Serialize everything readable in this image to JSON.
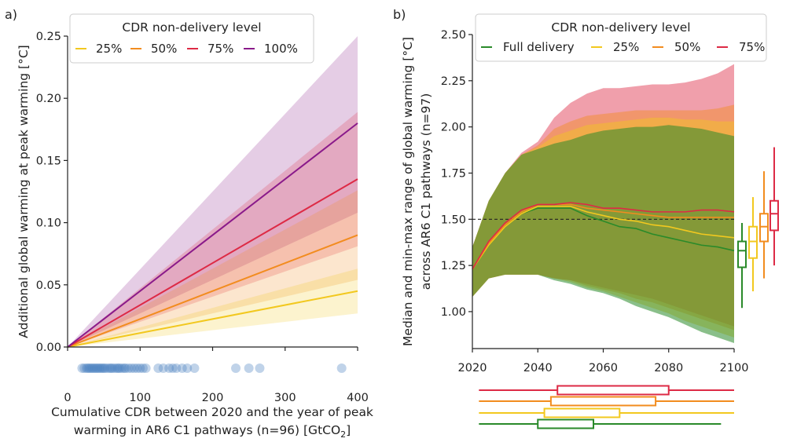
{
  "colors": {
    "full": "#2a8a2a",
    "p25": "#f2c81f",
    "p50": "#f28c1f",
    "p75": "#dd2a45",
    "p100": "#8a1a8a",
    "dots": "#4a80c0"
  },
  "chart_data": [
    {
      "type": "line",
      "panel_label": "a)",
      "xlabel_line1": "Cumulative CDR between 2020 and the year of peak",
      "xlabel_line2_prefix": "warming in AR6 C1 pathways (n=96) [GtCO",
      "xlabel_line2_sub": "2",
      "xlabel_line2_suffix": "]",
      "ylabel": "Additional global warming at peak warming [°C]",
      "xlim": [
        0,
        400
      ],
      "ylim": [
        0,
        0.25
      ],
      "xticks": [
        0,
        100,
        200,
        300,
        400
      ],
      "yticks": [
        0.0,
        0.05,
        0.1,
        0.15,
        0.2,
        0.25
      ],
      "ytick_labels": [
        "0.00",
        "0.05",
        "0.10",
        "0.15",
        "0.20",
        "0.25"
      ],
      "legend_title": "CDR non-delivery level",
      "series": [
        {
          "name": "25%",
          "key": "p25",
          "x": [
            0,
            400
          ],
          "median": [
            0,
            0.045
          ],
          "low": [
            0,
            0.027
          ],
          "high": [
            0,
            0.063
          ]
        },
        {
          "name": "50%",
          "key": "p50",
          "x": [
            0,
            400
          ],
          "median": [
            0,
            0.09
          ],
          "low": [
            0,
            0.054
          ],
          "high": [
            0,
            0.126
          ]
        },
        {
          "name": "75%",
          "key": "p75",
          "x": [
            0,
            400
          ],
          "median": [
            0,
            0.135
          ],
          "low": [
            0,
            0.081
          ],
          "high": [
            0,
            0.189
          ]
        },
        {
          "name": "100%",
          "key": "p100",
          "x": [
            0,
            400
          ],
          "median": [
            0,
            0.18
          ],
          "low": [
            0,
            0.108
          ],
          "high": [
            0,
            0.25
          ]
        }
      ],
      "strip_values": [
        20,
        23,
        26,
        28,
        30,
        32,
        34,
        36,
        38,
        40,
        42,
        44,
        46,
        48,
        50,
        52,
        55,
        58,
        60,
        62,
        65,
        68,
        70,
        72,
        75,
        78,
        80,
        84,
        88,
        92,
        96,
        100,
        104,
        108,
        125,
        132,
        140,
        145,
        150,
        158,
        165,
        175,
        232,
        250,
        265,
        378
      ]
    },
    {
      "type": "area",
      "panel_label": "b)",
      "ylabel_line1": "Median and min-max range of global warming [°C]",
      "ylabel_line2": "across AR6 C1 pathways (n=97)",
      "xlim": [
        2020,
        2100
      ],
      "ylim": [
        0.8,
        2.5
      ],
      "xticks": [
        2020,
        2040,
        2060,
        2080,
        2100
      ],
      "yticks": [
        1.0,
        1.25,
        1.5,
        1.75,
        2.0,
        2.25,
        2.5
      ],
      "ytick_labels": [
        "1.00",
        "1.25",
        "1.50",
        "1.75",
        "2.00",
        "2.25",
        "2.50"
      ],
      "reference_line": 1.5,
      "legend_title": "CDR non-delivery level",
      "years": [
        2020,
        2025,
        2030,
        2035,
        2040,
        2045,
        2050,
        2055,
        2060,
        2065,
        2070,
        2075,
        2080,
        2085,
        2090,
        2095,
        2100
      ],
      "series": [
        {
          "name": "Full delivery",
          "key": "full",
          "median": [
            1.23,
            1.36,
            1.46,
            1.53,
            1.56,
            1.56,
            1.56,
            1.52,
            1.49,
            1.46,
            1.45,
            1.42,
            1.4,
            1.38,
            1.36,
            1.35,
            1.33
          ],
          "min": [
            1.08,
            1.18,
            1.2,
            1.2,
            1.2,
            1.17,
            1.15,
            1.12,
            1.1,
            1.07,
            1.03,
            1.0,
            0.97,
            0.93,
            0.89,
            0.86,
            0.83
          ],
          "max": [
            1.35,
            1.6,
            1.75,
            1.85,
            1.88,
            1.91,
            1.93,
            1.96,
            1.98,
            1.99,
            2.0,
            2.0,
            2.01,
            2.0,
            1.99,
            1.97,
            1.95
          ],
          "box": {
            "whisker_low": 1.02,
            "q1": 1.24,
            "median": 1.33,
            "q3": 1.38,
            "whisker_high": 1.48
          }
        },
        {
          "name": "25%",
          "key": "p25",
          "median": [
            1.23,
            1.36,
            1.46,
            1.53,
            1.57,
            1.57,
            1.57,
            1.54,
            1.52,
            1.5,
            1.49,
            1.47,
            1.46,
            1.44,
            1.42,
            1.41,
            1.4
          ],
          "min": [
            1.08,
            1.18,
            1.2,
            1.2,
            1.2,
            1.18,
            1.16,
            1.13,
            1.11,
            1.08,
            1.05,
            1.02,
            0.99,
            0.95,
            0.92,
            0.89,
            0.86
          ],
          "max": [
            1.35,
            1.6,
            1.75,
            1.85,
            1.89,
            1.95,
            1.98,
            2.01,
            2.02,
            2.03,
            2.04,
            2.05,
            2.05,
            2.04,
            2.04,
            2.03,
            2.03
          ],
          "box": {
            "whisker_low": 1.11,
            "q1": 1.29,
            "median": 1.38,
            "q3": 1.46,
            "whisker_high": 1.62
          }
        },
        {
          "name": "50%",
          "key": "p50",
          "median": [
            1.23,
            1.37,
            1.47,
            1.54,
            1.58,
            1.58,
            1.58,
            1.56,
            1.55,
            1.54,
            1.53,
            1.52,
            1.51,
            1.51,
            1.51,
            1.51,
            1.51
          ],
          "min": [
            1.08,
            1.18,
            1.2,
            1.2,
            1.2,
            1.18,
            1.17,
            1.14,
            1.12,
            1.1,
            1.07,
            1.05,
            1.02,
            0.99,
            0.96,
            0.93,
            0.9
          ],
          "max": [
            1.35,
            1.6,
            1.75,
            1.85,
            1.9,
            1.99,
            2.03,
            2.06,
            2.07,
            2.08,
            2.09,
            2.09,
            2.09,
            2.09,
            2.09,
            2.1,
            2.12
          ],
          "box": {
            "whisker_low": 1.18,
            "q1": 1.38,
            "median": 1.46,
            "q3": 1.53,
            "whisker_high": 1.76
          }
        },
        {
          "name": "75%",
          "key": "p75",
          "median": [
            1.23,
            1.38,
            1.48,
            1.55,
            1.58,
            1.58,
            1.59,
            1.58,
            1.56,
            1.56,
            1.55,
            1.54,
            1.54,
            1.54,
            1.55,
            1.55,
            1.54
          ],
          "min": [
            1.08,
            1.18,
            1.2,
            1.2,
            1.2,
            1.18,
            1.17,
            1.15,
            1.13,
            1.11,
            1.09,
            1.07,
            1.04,
            1.01,
            0.98,
            0.95,
            0.92
          ],
          "max": [
            1.35,
            1.6,
            1.75,
            1.86,
            1.92,
            2.05,
            2.13,
            2.18,
            2.21,
            2.21,
            2.22,
            2.23,
            2.23,
            2.24,
            2.26,
            2.29,
            2.34
          ],
          "box": {
            "whisker_low": 1.25,
            "q1": 1.44,
            "median": 1.53,
            "q3": 1.6,
            "whisker_high": 1.89
          }
        }
      ],
      "peak_year_boxes": [
        {
          "key": "p75",
          "whisker_low": 2022,
          "q1": 2046,
          "median": 2053,
          "q3": 2080,
          "whisker_high": 2100
        },
        {
          "key": "p50",
          "whisker_low": 2022,
          "q1": 2044,
          "median": 2050,
          "q3": 2076,
          "whisker_high": 2100
        },
        {
          "key": "p25",
          "whisker_low": 2022,
          "q1": 2042,
          "median": 2048,
          "q3": 2065,
          "whisker_high": 2100
        },
        {
          "key": "full",
          "whisker_low": 2022,
          "q1": 2040,
          "median": 2045,
          "q3": 2057,
          "whisker_high": 2096
        }
      ]
    }
  ]
}
